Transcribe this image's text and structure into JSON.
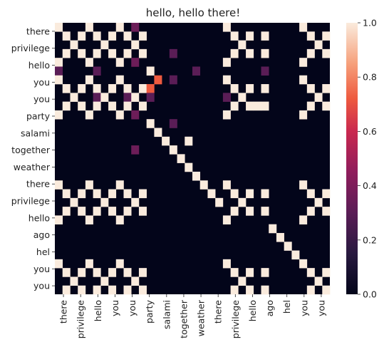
{
  "chart_data": {
    "type": "heatmap",
    "title": "hello, hello there!",
    "labels": [
      "there",
      "privilege",
      "hello",
      "you",
      "you",
      "party",
      "salami",
      "together",
      "weather",
      "there",
      "privilege",
      "hello",
      "ago",
      "hel",
      "you",
      "you"
    ],
    "y_labels_shown": [
      "there",
      "privilege",
      "hello",
      "you",
      "you",
      "party",
      "salami",
      "together",
      "weather",
      "there",
      "privilege",
      "hello",
      "ago",
      "hel",
      "you",
      "you"
    ],
    "x_labels_shown": [
      "there",
      "privilege",
      "hello",
      "you",
      "you",
      "party",
      "salami",
      "together",
      "weather",
      "there",
      "privilege",
      "hello",
      "ago",
      "hel",
      "you",
      "you"
    ],
    "colorbar": {
      "min": 0.0,
      "max": 1.0,
      "ticks": [
        "0.0",
        "0.2",
        "0.4",
        "0.6",
        "0.8",
        "1.0"
      ]
    },
    "colormap": "rocket",
    "values": [
      [
        1,
        0,
        0,
        0,
        1,
        0,
        0,
        0,
        1,
        0,
        0,
        0,
        0,
        0,
        0,
        0,
        0,
        0,
        0,
        0,
        0,
        0,
        1,
        0,
        0,
        0,
        0,
        0,
        0,
        0,
        0,
        0,
        1,
        0,
        0,
        0
      ],
      [
        0,
        1,
        0,
        1,
        0,
        1,
        0,
        1,
        0,
        1,
        0,
        1,
        0,
        0,
        0,
        0,
        0,
        0,
        0,
        0,
        0,
        0,
        0,
        1,
        0,
        1,
        0,
        1,
        0,
        0,
        0,
        0,
        0,
        1,
        0,
        1
      ],
      [
        0,
        0,
        1,
        0,
        0,
        0,
        1,
        0,
        0,
        0,
        1,
        0,
        0,
        0,
        0,
        0,
        0,
        0,
        0,
        0,
        0,
        0,
        0,
        0,
        1,
        0,
        0,
        0,
        0,
        0,
        0,
        0,
        0,
        0,
        1,
        0
      ],
      [
        0,
        1,
        0,
        1,
        0,
        1,
        0,
        1,
        0,
        1,
        0,
        1,
        0,
        0,
        0,
        0,
        0,
        0,
        0,
        0,
        0,
        0,
        0,
        1,
        0,
        1,
        0,
        1,
        0,
        0,
        0,
        0,
        0,
        1,
        0,
        1
      ],
      [
        1,
        0,
        0,
        0,
        1,
        0,
        0,
        0,
        1,
        0,
        0,
        0,
        0,
        0,
        0,
        0,
        0,
        0,
        0,
        0,
        0,
        0,
        1,
        0,
        0,
        0,
        0,
        0,
        0,
        0,
        0,
        0,
        1,
        0,
        0,
        0
      ],
      [
        0,
        0,
        0,
        0,
        0,
        0,
        0,
        0,
        0,
        0,
        0,
        0,
        1,
        0,
        0,
        0,
        0,
        0,
        0,
        0,
        0,
        0,
        0,
        0,
        0,
        0,
        0,
        0,
        0,
        0,
        0,
        0,
        0,
        0,
        0,
        0
      ],
      [
        1,
        0,
        0,
        0,
        1,
        0,
        0,
        0,
        1,
        0,
        0,
        0,
        0,
        0,
        0,
        0,
        0,
        0,
        0,
        0,
        0,
        0,
        1,
        0,
        0,
        0,
        0,
        0,
        0,
        0,
        0,
        0,
        1,
        0,
        0,
        0
      ],
      [
        0,
        1,
        0,
        1,
        0,
        1,
        0,
        1,
        0,
        1,
        0,
        1,
        0,
        0,
        0,
        0,
        0,
        0,
        0,
        0,
        0,
        0,
        0,
        1,
        0,
        1,
        0,
        1,
        0,
        0,
        0,
        0,
        0,
        1,
        0,
        1
      ],
      [
        0,
        0,
        1,
        0,
        0,
        0,
        1,
        0,
        0,
        0,
        1,
        0,
        0,
        0,
        0,
        0,
        0,
        0,
        0,
        0,
        0,
        0,
        0,
        0,
        1,
        0,
        0,
        0,
        0,
        0,
        0,
        0,
        0,
        0,
        1,
        0
      ],
      [
        0,
        1,
        0,
        1,
        0,
        1,
        0,
        1,
        0,
        1,
        0,
        1,
        0,
        0,
        0,
        0,
        0,
        0,
        0,
        0,
        0,
        0,
        0,
        1,
        0,
        1,
        0,
        1,
        0,
        0,
        0,
        0,
        0,
        1,
        0,
        1
      ],
      [
        1,
        0,
        0,
        0,
        1,
        0,
        0,
        0,
        1,
        0,
        0,
        0,
        0,
        0,
        0,
        0,
        0,
        0,
        0,
        0,
        0,
        0,
        1,
        0,
        0,
        0,
        0,
        0,
        0,
        0,
        0,
        0,
        1,
        0,
        0,
        0
      ],
      [
        0,
        0,
        0,
        0,
        0,
        0,
        0,
        0,
        0,
        0,
        0,
        0,
        1,
        0,
        0,
        0,
        0,
        0,
        0,
        0,
        0,
        0,
        0,
        0,
        0,
        0,
        0,
        0,
        0,
        0,
        0,
        0,
        0,
        0,
        0,
        0
      ],
      [
        0,
        0,
        0,
        0,
        0,
        0,
        0,
        0,
        0,
        0,
        0,
        0,
        0,
        1,
        0,
        0,
        0,
        0,
        0,
        0,
        0,
        0,
        0,
        0,
        0,
        0,
        0,
        0,
        0,
        0,
        0,
        0,
        0,
        0,
        0,
        0
      ],
      [
        0,
        0,
        0,
        0,
        0,
        0,
        0,
        0,
        0,
        0,
        0,
        0,
        0,
        0,
        1,
        0,
        0,
        0,
        0,
        0,
        0,
        0,
        0,
        0,
        0,
        0,
        0,
        0,
        0,
        0,
        0,
        0,
        0,
        0,
        0,
        0
      ],
      [
        0,
        0,
        0,
        0,
        0,
        0,
        0,
        0,
        0,
        0,
        0,
        0,
        0,
        0,
        0,
        1,
        0,
        0,
        0,
        0,
        0,
        0,
        0,
        0,
        0,
        0,
        0,
        0,
        0,
        0,
        0,
        0,
        0,
        0,
        0,
        0
      ],
      [
        0,
        0,
        0,
        0,
        0,
        0,
        0,
        0,
        0,
        0,
        0,
        0,
        0,
        0,
        0,
        0,
        1,
        0,
        0,
        0,
        0,
        0,
        0,
        0,
        0,
        0,
        0,
        0,
        0,
        0,
        0,
        0,
        0,
        0,
        0,
        0
      ],
      [
        0,
        0,
        0,
        0,
        0,
        0,
        0,
        0,
        0,
        0,
        0,
        0,
        0,
        0,
        0,
        0,
        0,
        1,
        0,
        0,
        0,
        0,
        0,
        0,
        0,
        0,
        0,
        0,
        0,
        0,
        0,
        0,
        0,
        0,
        0,
        0
      ],
      [
        0,
        0,
        0,
        0,
        0,
        0,
        0,
        0,
        0,
        0,
        0,
        0,
        0,
        0,
        0,
        0,
        0,
        0,
        1,
        0,
        0,
        0,
        0,
        0,
        0,
        0,
        0,
        0,
        0,
        0,
        0,
        0,
        0,
        0,
        0,
        0
      ],
      [
        1,
        0,
        0,
        0,
        1,
        0,
        0,
        0,
        1,
        0,
        0,
        0,
        0,
        0,
        0,
        0,
        0,
        0,
        0,
        1,
        0,
        0,
        1,
        0,
        0,
        0,
        0,
        0,
        0,
        0,
        0,
        0,
        1,
        0,
        0,
        0
      ],
      [
        0,
        1,
        0,
        1,
        0,
        1,
        0,
        1,
        0,
        1,
        0,
        1,
        0,
        0,
        0,
        0,
        0,
        0,
        0,
        0,
        1,
        0,
        0,
        1,
        0,
        1,
        0,
        1,
        0,
        0,
        0,
        0,
        0,
        1,
        0,
        1
      ],
      [
        0,
        0,
        1,
        0,
        0,
        0,
        1,
        0,
        0,
        0,
        1,
        0,
        0,
        0,
        0,
        0,
        0,
        0,
        0,
        0,
        0,
        1,
        0,
        0,
        1,
        0,
        0,
        0,
        0,
        0,
        0,
        0,
        0,
        0,
        1,
        0
      ],
      [
        0,
        1,
        0,
        1,
        0,
        1,
        0,
        1,
        0,
        1,
        0,
        1,
        0,
        0,
        0,
        0,
        0,
        0,
        0,
        0,
        0,
        0,
        0,
        1,
        0,
        1,
        0,
        1,
        0,
        0,
        0,
        0,
        0,
        1,
        0,
        1
      ],
      [
        1,
        0,
        0,
        0,
        1,
        0,
        0,
        0,
        1,
        0,
        0,
        0,
        0,
        0,
        0,
        0,
        0,
        0,
        0,
        0,
        0,
        0,
        1,
        0,
        0,
        0,
        0,
        0,
        0,
        0,
        0,
        0,
        1,
        0,
        0,
        0
      ],
      [
        0,
        0,
        0,
        0,
        0,
        0,
        0,
        0,
        0,
        0,
        0,
        0,
        0,
        0,
        0,
        0,
        0,
        0,
        0,
        0,
        0,
        0,
        0,
        0,
        0,
        0,
        0,
        0,
        1,
        0,
        0,
        0,
        0,
        0,
        0,
        0
      ],
      [
        0,
        0,
        0,
        0,
        0,
        0,
        0,
        0,
        0,
        0,
        0,
        0,
        0,
        0,
        0,
        0,
        0,
        0,
        0,
        0,
        0,
        0,
        0,
        0,
        0,
        0,
        0,
        0,
        0,
        1,
        0,
        0,
        0,
        0,
        0,
        0
      ],
      [
        0,
        0,
        0,
        0,
        0,
        0,
        0,
        0,
        0,
        0,
        0,
        0,
        0,
        0,
        0,
        0,
        0,
        0,
        0,
        0,
        0,
        0,
        0,
        0,
        0,
        0,
        0,
        0,
        0,
        0,
        1,
        0,
        0,
        0,
        0,
        0
      ],
      [
        0,
        0,
        0,
        0,
        0,
        0,
        0,
        0,
        0,
        0,
        0,
        0,
        0,
        0,
        0,
        0,
        0,
        0,
        0,
        0,
        0,
        0,
        0,
        0,
        0,
        0,
        0,
        0,
        0,
        0,
        0,
        1,
        0,
        0,
        0,
        0
      ],
      [
        1,
        0,
        0,
        0,
        1,
        0,
        0,
        0,
        1,
        0,
        0,
        0,
        0,
        0,
        0,
        0,
        0,
        0,
        0,
        0,
        0,
        0,
        1,
        0,
        0,
        0,
        0,
        0,
        0,
        0,
        0,
        0,
        1,
        0,
        0,
        0
      ],
      [
        0,
        1,
        0,
        1,
        0,
        1,
        0,
        1,
        0,
        1,
        0,
        1,
        0,
        0,
        0,
        0,
        0,
        0,
        0,
        0,
        0,
        0,
        0,
        1,
        0,
        1,
        0,
        1,
        0,
        0,
        0,
        0,
        0,
        1,
        0,
        1
      ],
      [
        0,
        0,
        1,
        0,
        0,
        0,
        1,
        0,
        0,
        0,
        1,
        0,
        0,
        0,
        0,
        0,
        0,
        0,
        0,
        0,
        0,
        0,
        0,
        0,
        1,
        0,
        0,
        0,
        0,
        0,
        0,
        0,
        0,
        0,
        1,
        0
      ],
      [
        0,
        1,
        0,
        1,
        0,
        1,
        0,
        1,
        0,
        1,
        0,
        1,
        0,
        0,
        0,
        0,
        0,
        0,
        0,
        0,
        0,
        0,
        0,
        1,
        0,
        1,
        0,
        1,
        0,
        0,
        0,
        0,
        0,
        1,
        0,
        1
      ]
    ],
    "overlays": [
      {
        "r": 0,
        "c": 10,
        "v": 0.35
      },
      {
        "r": 4,
        "c": 10,
        "v": 0.35
      },
      {
        "r": 5,
        "c": 0,
        "v": 0.3
      },
      {
        "r": 5,
        "c": 5,
        "v": 0.3
      },
      {
        "r": 5,
        "c": 18,
        "v": 0.3
      },
      {
        "r": 5,
        "c": 27,
        "v": 0.3
      },
      {
        "r": 6,
        "c": 13,
        "v": 0.72
      },
      {
        "r": 7,
        "c": 12,
        "v": 0.72
      },
      {
        "r": 6,
        "c": 15,
        "v": 0.3
      },
      {
        "r": 8,
        "c": 5,
        "v": 0.3
      },
      {
        "r": 8,
        "c": 9,
        "v": 0.3
      },
      {
        "r": 8,
        "c": 12,
        "v": 0.3
      },
      {
        "r": 8,
        "c": 22,
        "v": 0.3
      },
      {
        "r": 3,
        "c": 15,
        "v": 0.3
      },
      {
        "r": 10,
        "c": 10,
        "v": 0.35
      },
      {
        "r": 11,
        "c": 15,
        "v": 0.3
      },
      {
        "r": 14,
        "c": 10,
        "v": 0.35
      },
      {
        "r": 9,
        "c": 26,
        "v": 1.0
      },
      {
        "r": 13,
        "c": 17,
        "v": 1.0
      }
    ]
  }
}
